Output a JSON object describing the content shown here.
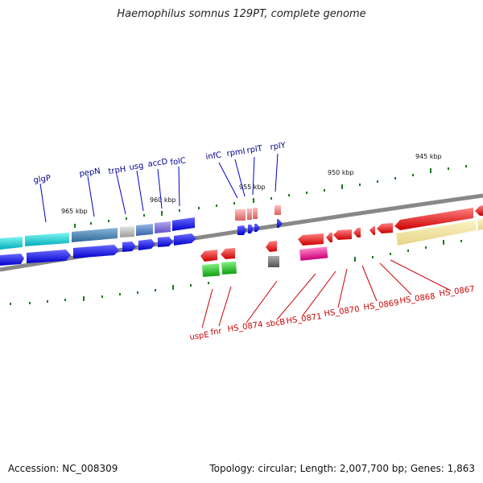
{
  "title": "Haemophilus somnus 129PT, complete genome",
  "footer": {
    "accession": "Accession: NC_008309",
    "topology": "Topology: circular; Length: 2,007,700 bp; Genes: 1,863"
  },
  "kbp_markers": [
    "965 kbp",
    "960 kbp",
    "955 kbp",
    "950 kbp",
    "945 kbp"
  ],
  "genes_top": [
    "glgP",
    "pepN",
    "trpH",
    "usg",
    "accD",
    "folC",
    "infC",
    "rpmI",
    "rplT",
    "rplY"
  ],
  "genes_bottom": [
    "uspE",
    "fnr",
    "HS_0874",
    "sbcB",
    "HS_0871",
    "HS_0870",
    "HS_0869",
    "HS_0868",
    "HS_0867"
  ],
  "colors": {
    "forward_strand": "#0000ee",
    "reverse_strand": "#ee0000",
    "backbone": "#888888",
    "label_top": "#00008b",
    "label_bottom": "#cc0000"
  }
}
